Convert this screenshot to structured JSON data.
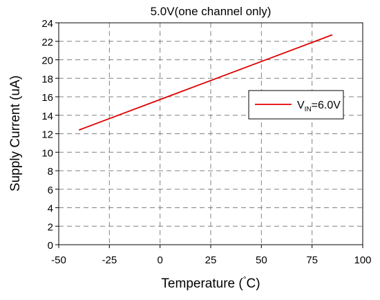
{
  "chart_data": {
    "type": "line",
    "title": "5.0V(one channel only)",
    "xlabel": {
      "main": "Temperature (",
      "degree": "°",
      "unit": "C)"
    },
    "ylabel": "Supply Current (uA)",
    "xlim": [
      -50,
      100
    ],
    "ylim": [
      0,
      24
    ],
    "x_ticks": [
      -50,
      -25,
      0,
      25,
      50,
      75,
      100
    ],
    "y_ticks": [
      0,
      2,
      4,
      6,
      8,
      10,
      12,
      14,
      16,
      18,
      20,
      22,
      24
    ],
    "grid": true,
    "legend_position": "right",
    "series": [
      {
        "name": {
          "prefix": "V",
          "subscript": "IN",
          "suffix": "=6.0V"
        },
        "color": "#e00000",
        "x": [
          -40,
          85
        ],
        "y": [
          12.4,
          22.7
        ]
      }
    ]
  }
}
